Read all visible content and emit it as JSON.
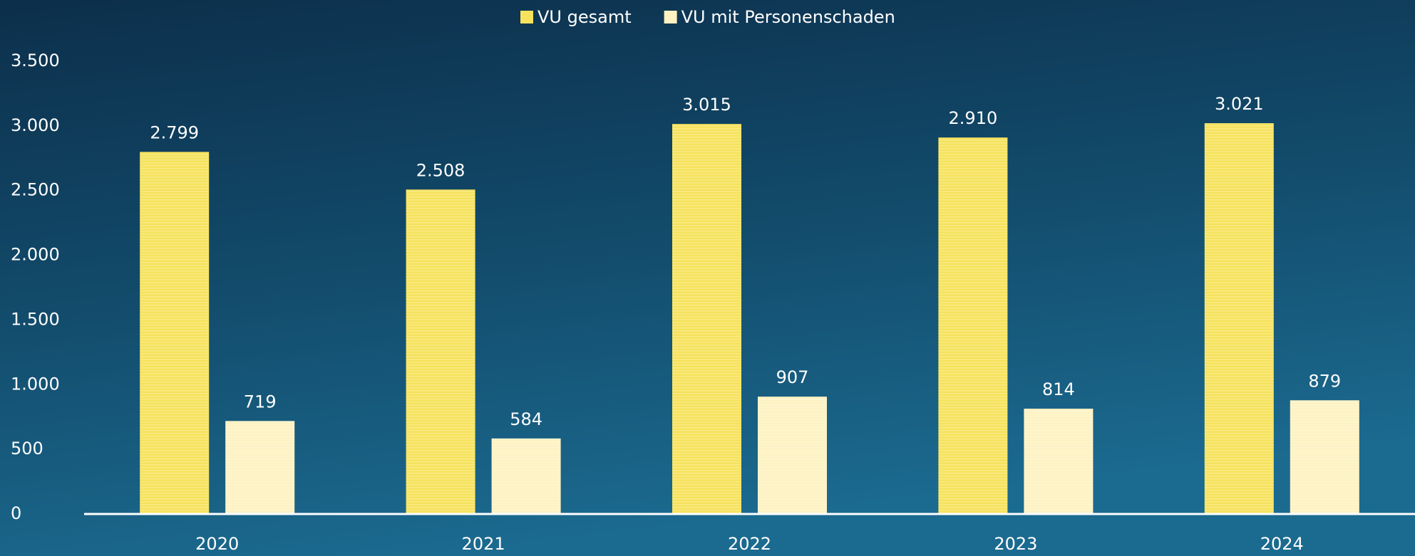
{
  "chart_data": {
    "type": "bar",
    "categories": [
      "2020",
      "2021",
      "2022",
      "2023",
      "2024"
    ],
    "series": [
      {
        "name": "VU gesamt",
        "color": "#f6e25c",
        "values": [
          2799,
          2508,
          3015,
          2910,
          3021
        ],
        "value_labels": [
          "2.799",
          "2.508",
          "3.015",
          "2.910",
          "3.021"
        ]
      },
      {
        "name": "VU mit Personenschaden",
        "color": "#fdf2c2",
        "values": [
          719,
          584,
          907,
          814,
          879
        ]
      }
    ],
    "ylim": [
      0,
      3500
    ],
    "yticks": [
      0,
      500,
      {
        "value": 1000,
        "label": "1.000"
      },
      {
        "value": 1500,
        "label": "1.500"
      },
      {
        "value": 2000,
        "label": "2.000"
      },
      {
        "value": 2500,
        "label": "2.500"
      },
      {
        "value": 3000,
        "label": "3.000"
      },
      {
        "value": 3500,
        "label": "3.500"
      }
    ],
    "legend": "top"
  }
}
